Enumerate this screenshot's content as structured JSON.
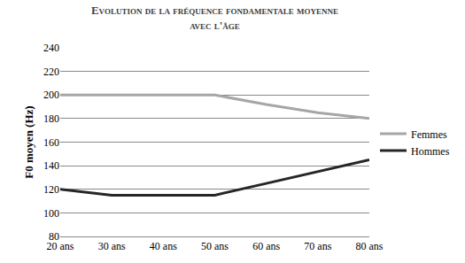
{
  "chart_data": {
    "type": "line",
    "title": "Evolution de la fréquence fondamentale moyenne avec l'âge",
    "y_label": "F0 moyen (Hz)",
    "categories": [
      "20 ans",
      "30 ans",
      "40 ans",
      "50 ans",
      "60 ans",
      "70 ans",
      "80 ans"
    ],
    "series": [
      {
        "name": "Femmes",
        "color": "#a6a6a6",
        "values": [
          200,
          200,
          200,
          200,
          192,
          185,
          180
        ]
      },
      {
        "name": "Hommes",
        "color": "#262626",
        "values": [
          120,
          115,
          115,
          115,
          125,
          135,
          145
        ]
      }
    ],
    "ylim": [
      80,
      240
    ],
    "yticks": [
      80,
      100,
      120,
      140,
      160,
      180,
      200,
      220,
      240
    ],
    "grid": true,
    "legend": "right"
  }
}
